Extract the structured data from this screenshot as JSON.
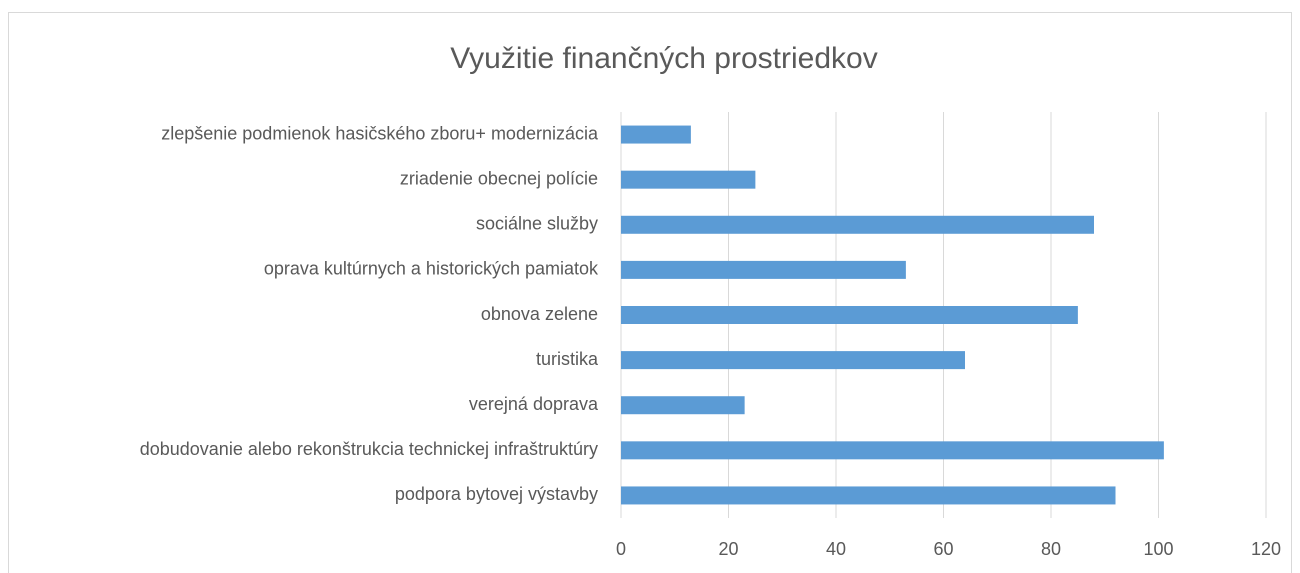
{
  "chart_data": {
    "type": "bar",
    "orientation": "horizontal",
    "title": "Využitie finančných prostriedkov",
    "categories": [
      "zlepšenie podmienok hasičského zboru+ modernizácia",
      "zriadenie obecnej polície",
      "sociálne služby",
      "oprava kultúrnych a historických pamiatok",
      "obnova zelene",
      "turistika",
      "verejná doprava",
      "dobudovanie alebo rekonštrukcia technickej infraštruktúry",
      "podpora bytovej výstavby"
    ],
    "values": [
      13,
      25,
      88,
      53,
      85,
      64,
      23,
      101,
      92
    ],
    "color": "#5b9bd5",
    "xlim": [
      0,
      120
    ],
    "xticks": [
      0,
      20,
      40,
      60,
      80,
      100,
      120
    ],
    "grid": true
  }
}
